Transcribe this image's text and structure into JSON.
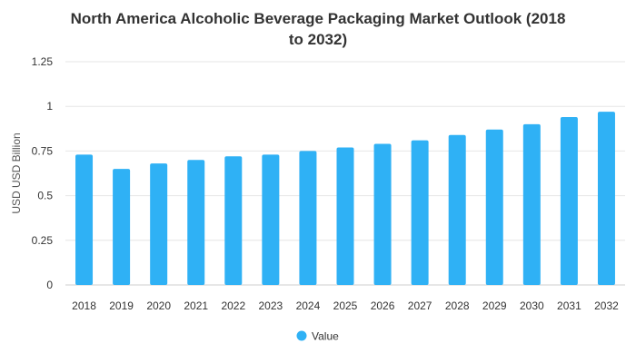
{
  "chart_data": {
    "type": "bar",
    "title_lines": [
      "North America Alcoholic Beverage Packaging Market Outlook (2018",
      "to 2032)"
    ],
    "categories": [
      "2018",
      "2019",
      "2020",
      "2021",
      "2022",
      "2023",
      "2024",
      "2025",
      "2026",
      "2027",
      "2028",
      "2029",
      "2030",
      "2031",
      "2032"
    ],
    "series": [
      {
        "name": "Value",
        "values": [
          0.73,
          0.65,
          0.68,
          0.7,
          0.72,
          0.73,
          0.75,
          0.77,
          0.79,
          0.81,
          0.84,
          0.87,
          0.9,
          0.94,
          0.97
        ]
      }
    ],
    "xlabel": "",
    "ylabel": "USD USD Billion",
    "ylim": [
      0,
      1.25
    ],
    "yticks": [
      0,
      0.25,
      0.5,
      0.75,
      1,
      1.25
    ],
    "ytick_labels": [
      "0",
      "0.25",
      "0.5",
      "0.75",
      "1",
      "1.25"
    ],
    "grid": true,
    "legend_position": "bottom-center",
    "colors": {
      "bar": "#2fb1f5",
      "grid": "#e6e6e6",
      "text": "#333333"
    }
  }
}
